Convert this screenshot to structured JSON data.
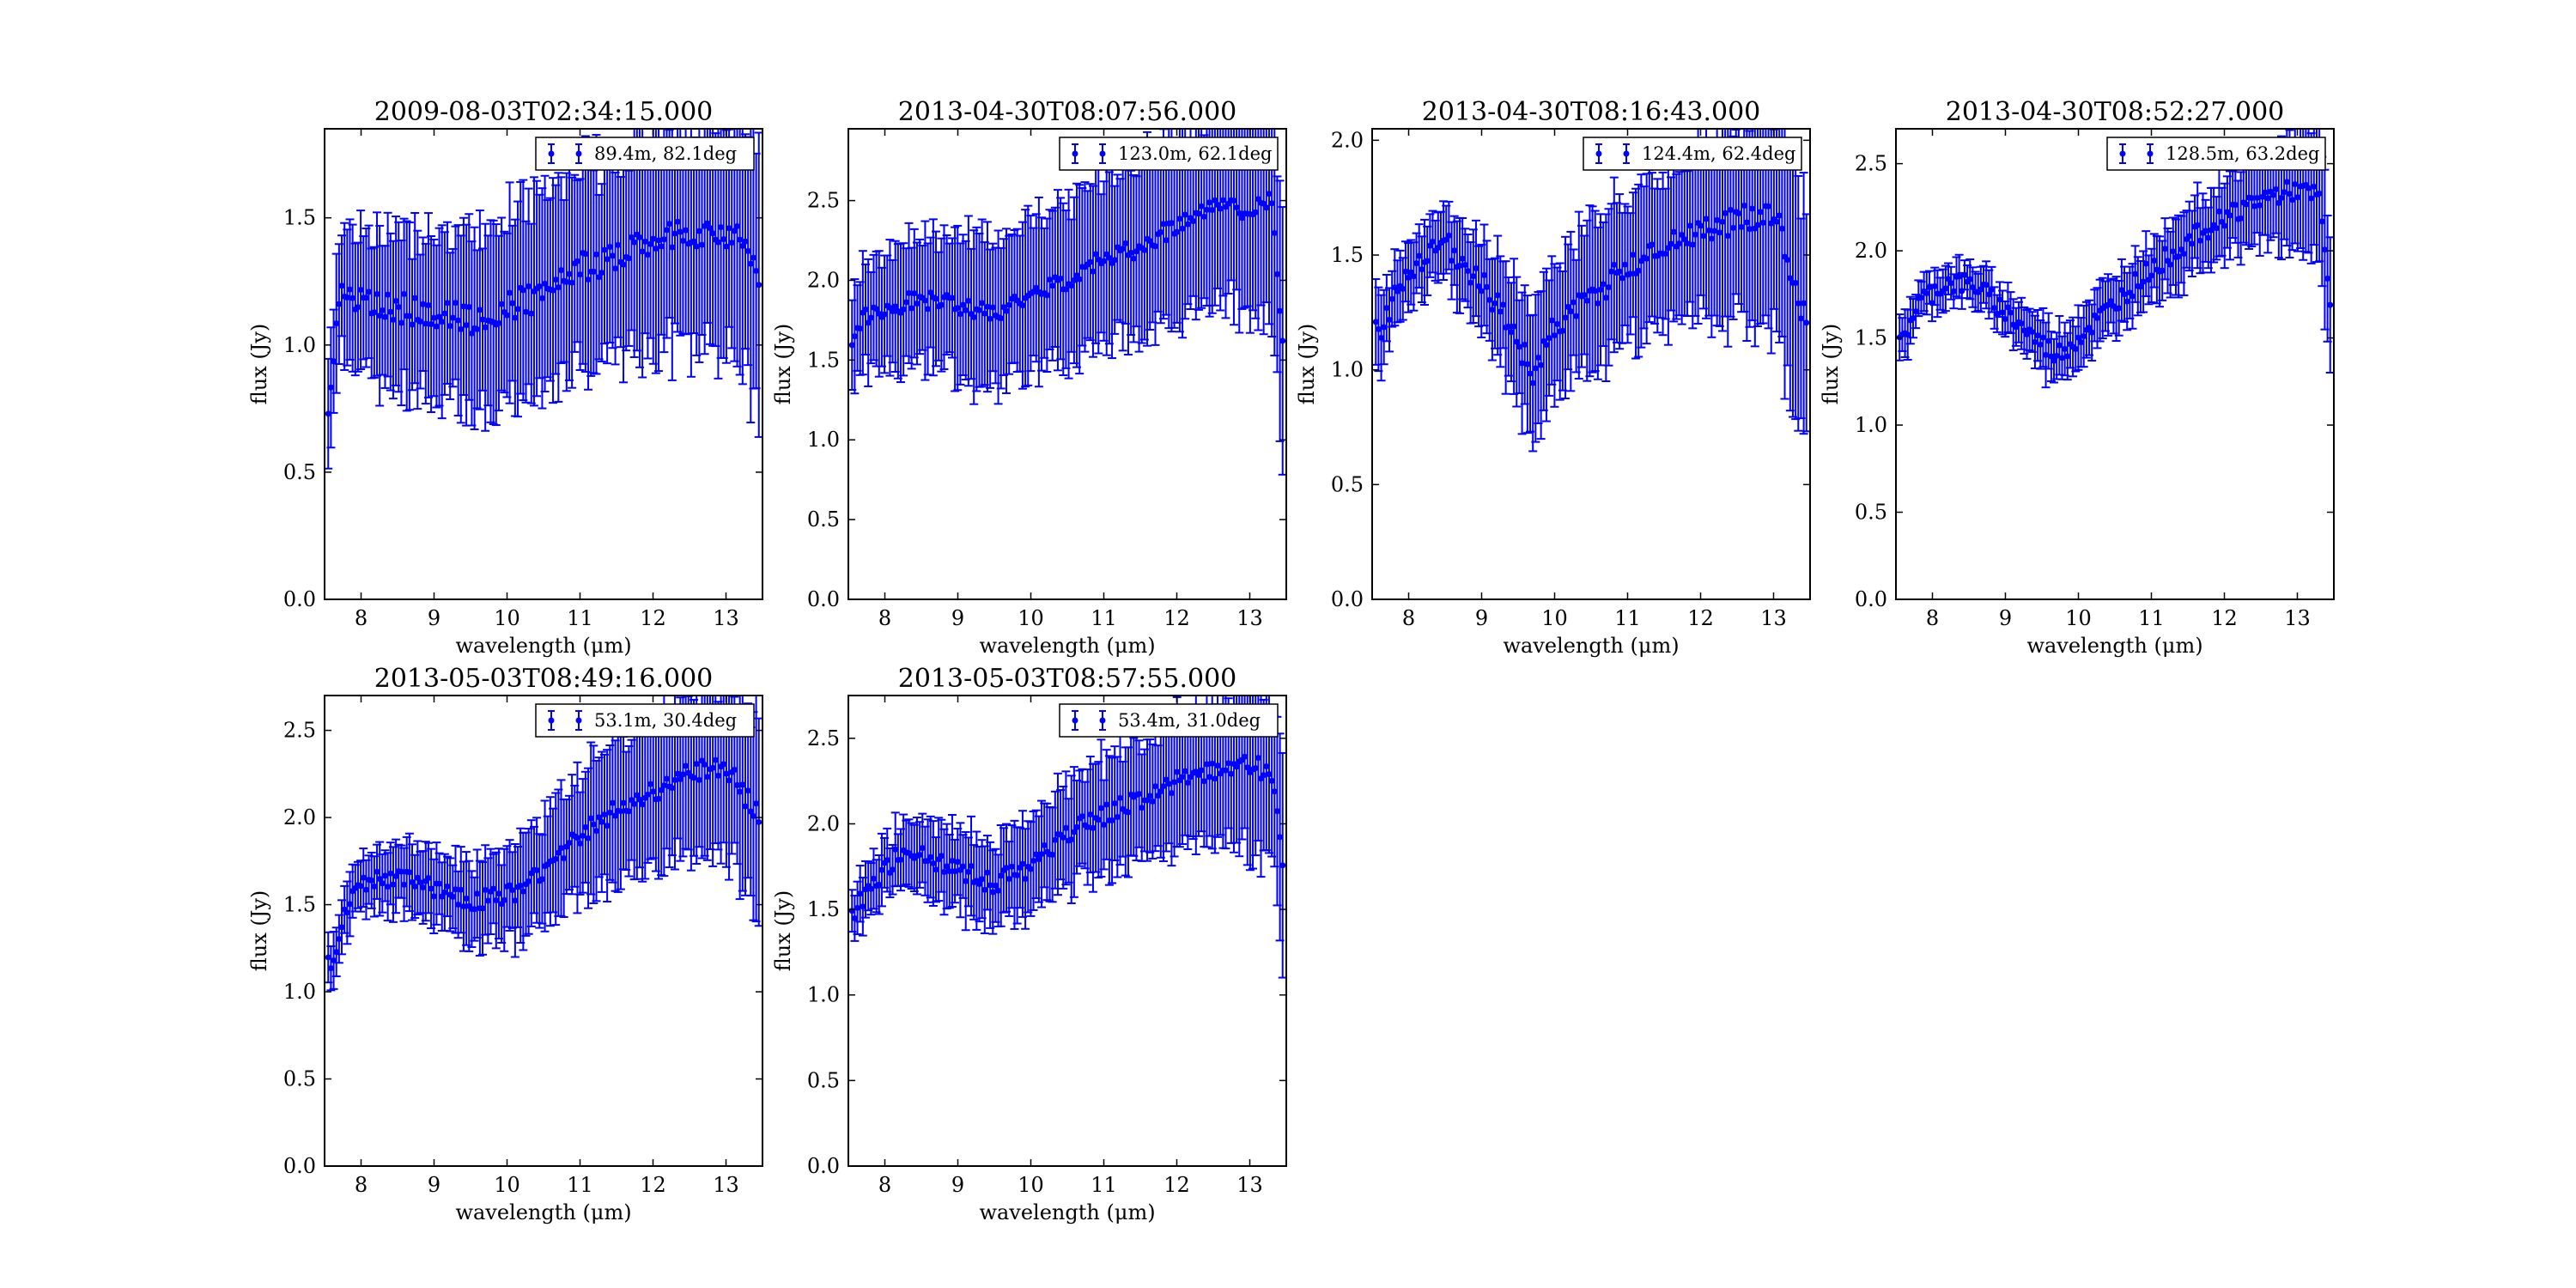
{
  "figure": {
    "background": "#ffffff",
    "series_color": "#0000ff"
  },
  "chart_data": [
    {
      "type": "scatter",
      "title": "2009-08-03T02:34:15.000",
      "xlabel": "wavelength (μm)",
      "ylabel": "flux (Jy)",
      "legend": "89.4m, 82.1deg",
      "legend_position": "top-right",
      "xlim": [
        7.5,
        13.5
      ],
      "ylim": [
        0.0,
        1.85
      ],
      "xticks": [
        "8",
        "9",
        "10",
        "11",
        "12",
        "13"
      ],
      "yticks": [
        "0.0",
        "0.5",
        "1.0",
        "1.5"
      ],
      "grid": false,
      "n_points": 160,
      "x_range": [
        7.55,
        13.45
      ],
      "y_anchors": [
        [
          7.55,
          0.78
        ],
        [
          7.7,
          1.2
        ],
        [
          8.0,
          1.18
        ],
        [
          8.5,
          1.15
        ],
        [
          9.0,
          1.12
        ],
        [
          9.5,
          1.1
        ],
        [
          10.0,
          1.15
        ],
        [
          10.5,
          1.2
        ],
        [
          11.0,
          1.3
        ],
        [
          11.5,
          1.35
        ],
        [
          12.0,
          1.4
        ],
        [
          12.5,
          1.45
        ],
        [
          13.0,
          1.42
        ],
        [
          13.3,
          1.4
        ],
        [
          13.45,
          1.2
        ]
      ],
      "err_anchors": [
        [
          7.55,
          0.2
        ],
        [
          8.0,
          0.28
        ],
        [
          9.0,
          0.32
        ],
        [
          10.0,
          0.35
        ],
        [
          11.0,
          0.38
        ],
        [
          12.0,
          0.42
        ],
        [
          13.0,
          0.45
        ],
        [
          13.45,
          0.55
        ]
      ]
    },
    {
      "type": "scatter",
      "title": "2013-04-30T08:07:56.000",
      "xlabel": "wavelength (μm)",
      "ylabel": "flux (Jy)",
      "legend": "123.0m, 62.1deg",
      "legend_position": "top-right",
      "xlim": [
        7.5,
        13.5
      ],
      "ylim": [
        0.0,
        2.95
      ],
      "xticks": [
        "8",
        "9",
        "10",
        "11",
        "12",
        "13"
      ],
      "yticks": [
        "0.0",
        "0.5",
        "1.0",
        "1.5",
        "2.0",
        "2.5"
      ],
      "grid": false,
      "n_points": 160,
      "x_range": [
        7.55,
        13.45
      ],
      "y_anchors": [
        [
          7.55,
          1.65
        ],
        [
          7.8,
          1.8
        ],
        [
          8.5,
          1.88
        ],
        [
          9.0,
          1.85
        ],
        [
          9.5,
          1.8
        ],
        [
          10.0,
          1.9
        ],
        [
          10.5,
          2.0
        ],
        [
          11.0,
          2.15
        ],
        [
          11.5,
          2.2
        ],
        [
          12.0,
          2.35
        ],
        [
          12.5,
          2.45
        ],
        [
          13.0,
          2.45
        ],
        [
          13.3,
          2.5
        ],
        [
          13.45,
          1.6
        ]
      ],
      "err_anchors": [
        [
          7.55,
          0.3
        ],
        [
          8.5,
          0.4
        ],
        [
          9.5,
          0.45
        ],
        [
          10.5,
          0.5
        ],
        [
          11.5,
          0.55
        ],
        [
          12.5,
          0.6
        ],
        [
          13.45,
          0.7
        ]
      ]
    },
    {
      "type": "scatter",
      "title": "2013-04-30T08:16:43.000",
      "xlabel": "wavelength (μm)",
      "ylabel": "flux (Jy)",
      "legend": "124.4m, 62.4deg",
      "legend_position": "top-right",
      "xlim": [
        7.5,
        13.5
      ],
      "ylim": [
        0.0,
        2.05
      ],
      "xticks": [
        "8",
        "9",
        "10",
        "11",
        "12",
        "13"
      ],
      "yticks": [
        "0.0",
        "0.5",
        "1.0",
        "1.5",
        "2.0"
      ],
      "grid": false,
      "n_points": 160,
      "x_range": [
        7.55,
        13.45
      ],
      "y_anchors": [
        [
          7.55,
          1.15
        ],
        [
          7.8,
          1.3
        ],
        [
          8.2,
          1.48
        ],
        [
          8.5,
          1.55
        ],
        [
          8.8,
          1.45
        ],
        [
          9.2,
          1.3
        ],
        [
          9.5,
          1.1
        ],
        [
          9.7,
          1.0
        ],
        [
          10.0,
          1.2
        ],
        [
          10.5,
          1.32
        ],
        [
          11.0,
          1.45
        ],
        [
          11.5,
          1.55
        ],
        [
          12.0,
          1.62
        ],
        [
          12.5,
          1.65
        ],
        [
          13.0,
          1.7
        ],
        [
          13.45,
          1.2
        ]
      ],
      "err_anchors": [
        [
          7.55,
          0.15
        ],
        [
          8.5,
          0.15
        ],
        [
          9.5,
          0.25
        ],
        [
          10.5,
          0.3
        ],
        [
          11.5,
          0.35
        ],
        [
          12.5,
          0.4
        ],
        [
          13.45,
          0.55
        ]
      ]
    },
    {
      "type": "scatter",
      "title": "2013-04-30T08:52:27.000",
      "xlabel": "wavelength (μm)",
      "ylabel": "flux (Jy)",
      "legend": "128.5m, 63.2deg",
      "legend_position": "top-right",
      "xlim": [
        7.5,
        13.5
      ],
      "ylim": [
        0.0,
        2.7
      ],
      "xticks": [
        "8",
        "9",
        "10",
        "11",
        "12",
        "13"
      ],
      "yticks": [
        "0.0",
        "0.5",
        "1.0",
        "1.5",
        "2.0",
        "2.5"
      ],
      "grid": false,
      "n_points": 160,
      "x_range": [
        7.55,
        13.45
      ],
      "y_anchors": [
        [
          7.55,
          1.45
        ],
        [
          7.8,
          1.7
        ],
        [
          8.2,
          1.82
        ],
        [
          8.6,
          1.8
        ],
        [
          9.0,
          1.65
        ],
        [
          9.4,
          1.5
        ],
        [
          9.7,
          1.4
        ],
        [
          10.0,
          1.5
        ],
        [
          10.5,
          1.7
        ],
        [
          11.0,
          1.9
        ],
        [
          11.5,
          2.05
        ],
        [
          12.0,
          2.2
        ],
        [
          12.5,
          2.3
        ],
        [
          13.0,
          2.35
        ],
        [
          13.3,
          2.3
        ],
        [
          13.45,
          1.7
        ]
      ],
      "err_anchors": [
        [
          7.55,
          0.12
        ],
        [
          8.5,
          0.1
        ],
        [
          9.5,
          0.15
        ],
        [
          10.5,
          0.15
        ],
        [
          11.5,
          0.2
        ],
        [
          12.5,
          0.25
        ],
        [
          13.45,
          0.4
        ]
      ]
    },
    {
      "type": "scatter",
      "title": "2013-05-03T08:49:16.000",
      "xlabel": "wavelength (μm)",
      "ylabel": "flux (Jy)",
      "legend": "53.1m, 30.4deg",
      "legend_position": "top-right",
      "xlim": [
        7.5,
        13.5
      ],
      "ylim": [
        0.0,
        2.7
      ],
      "xticks": [
        "8",
        "9",
        "10",
        "11",
        "12",
        "13"
      ],
      "yticks": [
        "0.0",
        "0.5",
        "1.0",
        "1.5",
        "2.0",
        "2.5"
      ],
      "grid": false,
      "n_points": 160,
      "x_range": [
        7.55,
        13.45
      ],
      "y_anchors": [
        [
          7.55,
          1.15
        ],
        [
          7.8,
          1.45
        ],
        [
          8.0,
          1.62
        ],
        [
          8.5,
          1.65
        ],
        [
          9.0,
          1.6
        ],
        [
          9.5,
          1.52
        ],
        [
          10.0,
          1.55
        ],
        [
          10.5,
          1.7
        ],
        [
          11.0,
          1.9
        ],
        [
          11.5,
          2.05
        ],
        [
          12.0,
          2.15
        ],
        [
          12.5,
          2.25
        ],
        [
          13.0,
          2.3
        ],
        [
          13.45,
          2.0
        ]
      ],
      "err_anchors": [
        [
          7.55,
          0.15
        ],
        [
          8.5,
          0.18
        ],
        [
          9.5,
          0.22
        ],
        [
          10.5,
          0.3
        ],
        [
          11.5,
          0.4
        ],
        [
          12.5,
          0.45
        ],
        [
          13.45,
          0.55
        ]
      ]
    },
    {
      "type": "scatter",
      "title": "2013-05-03T08:57:55.000",
      "xlabel": "wavelength (μm)",
      "ylabel": "flux (Jy)",
      "legend": "53.4m, 31.0deg",
      "legend_position": "top-right",
      "xlim": [
        7.5,
        13.5
      ],
      "ylim": [
        0.0,
        2.75
      ],
      "xticks": [
        "8",
        "9",
        "10",
        "11",
        "12",
        "13"
      ],
      "yticks": [
        "0.0",
        "0.5",
        "1.0",
        "1.5",
        "2.0",
        "2.5"
      ],
      "grid": false,
      "n_points": 160,
      "x_range": [
        7.55,
        13.45
      ],
      "y_anchors": [
        [
          7.55,
          1.45
        ],
        [
          7.8,
          1.65
        ],
        [
          8.2,
          1.82
        ],
        [
          8.6,
          1.8
        ],
        [
          9.0,
          1.72
        ],
        [
          9.5,
          1.65
        ],
        [
          10.0,
          1.75
        ],
        [
          10.5,
          1.95
        ],
        [
          11.0,
          2.05
        ],
        [
          11.5,
          2.15
        ],
        [
          12.0,
          2.25
        ],
        [
          12.5,
          2.3
        ],
        [
          13.0,
          2.35
        ],
        [
          13.3,
          2.3
        ],
        [
          13.45,
          1.8
        ]
      ],
      "err_anchors": [
        [
          7.55,
          0.15
        ],
        [
          8.5,
          0.2
        ],
        [
          9.5,
          0.25
        ],
        [
          10.5,
          0.3
        ],
        [
          11.5,
          0.35
        ],
        [
          12.5,
          0.4
        ],
        [
          13.45,
          0.55
        ]
      ]
    }
  ]
}
